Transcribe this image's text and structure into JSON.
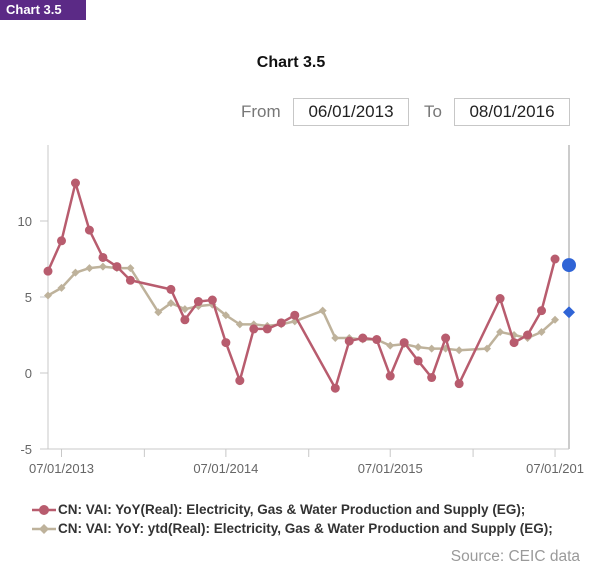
{
  "badge": "Chart 3.5",
  "title": "Chart 3.5",
  "date_range": {
    "from_label": "From",
    "from_value": "06/01/2013",
    "to_label": "To",
    "to_value": "08/01/2016"
  },
  "source": "Source: CEIC data",
  "colors": {
    "series1": "#b85c6e",
    "series2": "#beb29b",
    "last_point": "#2f64d6",
    "badge": "#5b2a86"
  },
  "chart_data": {
    "type": "line",
    "y_ticks": [
      "10",
      "5",
      "0",
      "-5"
    ],
    "x_ticks": [
      "07/01/2013",
      "07/01/2014",
      "07/01/2015",
      "07/01/201"
    ],
    "ylim": [
      -5,
      15
    ],
    "xlim": [
      "2013-06-01",
      "2016-08-01"
    ],
    "grid": false,
    "legend_position": "bottom",
    "series": [
      {
        "name": "CN: VAI: YoY(Real): Electricity, Gas & Water Production and Supply (EG);",
        "marker": "circle",
        "x": [
          "2013-06-01",
          "2013-07-01",
          "2013-08-01",
          "2013-09-01",
          "2013-10-01",
          "2013-11-01",
          "2013-12-01",
          "2014-03-01",
          "2014-04-01",
          "2014-05-01",
          "2014-06-01",
          "2014-07-01",
          "2014-08-01",
          "2014-09-01",
          "2014-10-01",
          "2014-11-01",
          "2014-12-01",
          "2015-03-01",
          "2015-04-01",
          "2015-05-01",
          "2015-06-01",
          "2015-07-01",
          "2015-08-01",
          "2015-09-01",
          "2015-10-01",
          "2015-11-01",
          "2015-12-01",
          "2016-03-01",
          "2016-04-01",
          "2016-05-01",
          "2016-06-01",
          "2016-07-01",
          "2016-08-01"
        ],
        "values": [
          6.7,
          8.7,
          12.5,
          9.4,
          7.6,
          7.0,
          6.1,
          5.5,
          3.5,
          4.7,
          4.8,
          2.0,
          -0.5,
          2.9,
          2.9,
          3.3,
          3.8,
          -1.0,
          2.1,
          2.3,
          2.2,
          -0.2,
          2.0,
          0.8,
          -0.3,
          2.3,
          -0.7,
          4.9,
          2.0,
          2.5,
          4.1,
          7.5,
          7.1
        ]
      },
      {
        "name": "CN: VAI: YoY: ytd(Real): Electricity, Gas & Water Production and Supply (EG);",
        "marker": "diamond",
        "x": [
          "2013-06-01",
          "2013-07-01",
          "2013-08-01",
          "2013-09-01",
          "2013-10-01",
          "2013-11-01",
          "2013-12-01",
          "2014-02-01",
          "2014-03-01",
          "2014-04-01",
          "2014-05-01",
          "2014-06-01",
          "2014-07-01",
          "2014-08-01",
          "2014-09-01",
          "2014-10-01",
          "2014-11-01",
          "2014-12-01",
          "2015-02-01",
          "2015-03-01",
          "2015-04-01",
          "2015-05-01",
          "2015-06-01",
          "2015-07-01",
          "2015-08-01",
          "2015-09-01",
          "2015-10-01",
          "2015-11-01",
          "2015-12-01",
          "2016-02-01",
          "2016-03-01",
          "2016-04-01",
          "2016-05-01",
          "2016-06-01",
          "2016-07-01",
          "2016-08-01"
        ],
        "values": [
          5.1,
          5.6,
          6.6,
          6.9,
          7.0,
          6.9,
          6.9,
          4.0,
          4.6,
          4.2,
          4.4,
          4.5,
          3.8,
          3.2,
          3.2,
          3.1,
          3.2,
          3.4,
          4.1,
          2.3,
          2.3,
          2.2,
          2.2,
          1.8,
          1.9,
          1.7,
          1.6,
          1.6,
          1.5,
          1.6,
          2.7,
          2.5,
          2.3,
          2.7,
          3.5,
          4.0
        ]
      }
    ]
  }
}
